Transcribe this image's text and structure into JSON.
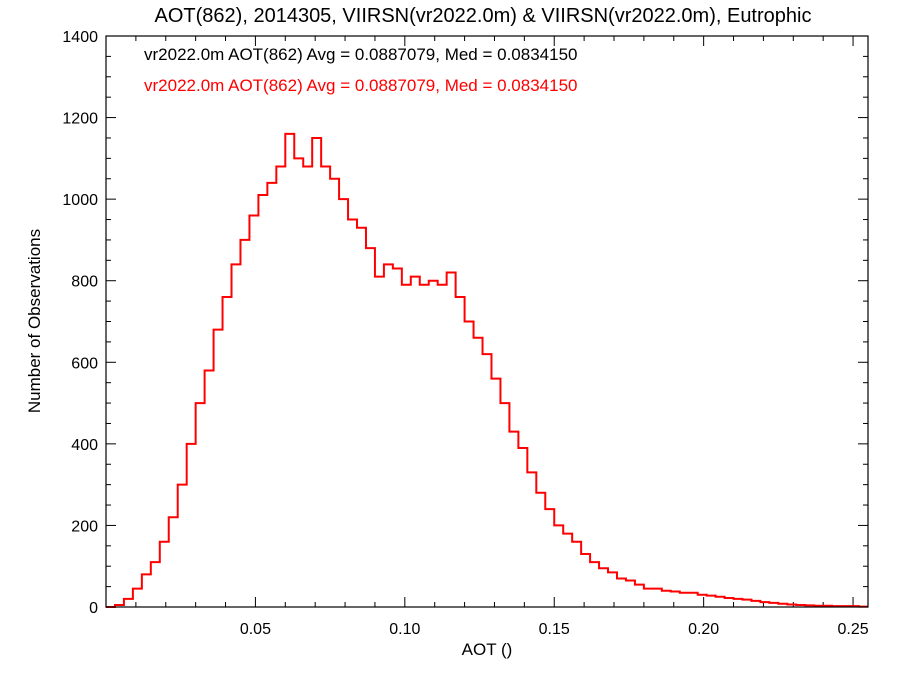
{
  "chart_data": {
    "type": "step",
    "title": "AOT(862), 2014305, VIIRSN(vr2022.0m) & VIIRSN(vr2022.0m), Eutrophic",
    "xlabel": "AOT ()",
    "ylabel": "Number of Observations",
    "xlim": [
      0.0,
      0.255
    ],
    "ylim": [
      0,
      1400
    ],
    "xticks": [
      0.05,
      0.1,
      0.15,
      0.2,
      0.25
    ],
    "xtick_labels": [
      "0.05",
      "0.10",
      "0.15",
      "0.20",
      "0.25"
    ],
    "yticks": [
      0,
      200,
      400,
      600,
      800,
      1000,
      1200,
      1400
    ],
    "ytick_labels": [
      "0",
      "200",
      "400",
      "600",
      "800",
      "1000",
      "1200",
      "1400"
    ],
    "grid": false,
    "legend_placement": "top-left",
    "annotations": [
      {
        "text": "vr2022.0m AOT(862) Avg = 0.0887079, Med = 0.0834150",
        "color": "#000000"
      },
      {
        "text": "vr2022.0m AOT(862) Avg = 0.0887079, Med = 0.0834150",
        "color": "#ff0000"
      }
    ],
    "series": [
      {
        "color": "#000000",
        "x": [
          0.0,
          0.003,
          0.006,
          0.009,
          0.012,
          0.015,
          0.018,
          0.021,
          0.024,
          0.027,
          0.03,
          0.033,
          0.036,
          0.039,
          0.042,
          0.045,
          0.048,
          0.051,
          0.054,
          0.057,
          0.06,
          0.063,
          0.066,
          0.069,
          0.072,
          0.075,
          0.078,
          0.081,
          0.084,
          0.087,
          0.09,
          0.093,
          0.096,
          0.099,
          0.102,
          0.105,
          0.108,
          0.111,
          0.114,
          0.117,
          0.12,
          0.123,
          0.126,
          0.129,
          0.132,
          0.135,
          0.138,
          0.141,
          0.144,
          0.147,
          0.15,
          0.153,
          0.156,
          0.159,
          0.162,
          0.165,
          0.168,
          0.171,
          0.174,
          0.177,
          0.18,
          0.183,
          0.186,
          0.189,
          0.192,
          0.195,
          0.198,
          0.201,
          0.204,
          0.207,
          0.21,
          0.213,
          0.216,
          0.219,
          0.222,
          0.225,
          0.228,
          0.231,
          0.234,
          0.237,
          0.24,
          0.243,
          0.246,
          0.249,
          0.252
        ],
        "values": [
          0,
          5,
          20,
          45,
          80,
          110,
          160,
          220,
          300,
          400,
          500,
          580,
          680,
          760,
          840,
          900,
          960,
          1010,
          1040,
          1080,
          1160,
          1100,
          1080,
          1150,
          1080,
          1050,
          1000,
          950,
          930,
          880,
          810,
          840,
          830,
          790,
          810,
          790,
          800,
          790,
          820,
          760,
          700,
          660,
          620,
          560,
          500,
          430,
          390,
          330,
          280,
          240,
          200,
          180,
          160,
          130,
          110,
          95,
          85,
          70,
          65,
          55,
          45,
          45,
          40,
          38,
          35,
          35,
          30,
          28,
          25,
          22,
          20,
          18,
          15,
          12,
          10,
          8,
          6,
          5,
          4,
          3,
          3,
          2,
          2,
          2,
          1
        ]
      },
      {
        "color": "#ff0000",
        "x": [
          0.0,
          0.003,
          0.006,
          0.009,
          0.012,
          0.015,
          0.018,
          0.021,
          0.024,
          0.027,
          0.03,
          0.033,
          0.036,
          0.039,
          0.042,
          0.045,
          0.048,
          0.051,
          0.054,
          0.057,
          0.06,
          0.063,
          0.066,
          0.069,
          0.072,
          0.075,
          0.078,
          0.081,
          0.084,
          0.087,
          0.09,
          0.093,
          0.096,
          0.099,
          0.102,
          0.105,
          0.108,
          0.111,
          0.114,
          0.117,
          0.12,
          0.123,
          0.126,
          0.129,
          0.132,
          0.135,
          0.138,
          0.141,
          0.144,
          0.147,
          0.15,
          0.153,
          0.156,
          0.159,
          0.162,
          0.165,
          0.168,
          0.171,
          0.174,
          0.177,
          0.18,
          0.183,
          0.186,
          0.189,
          0.192,
          0.195,
          0.198,
          0.201,
          0.204,
          0.207,
          0.21,
          0.213,
          0.216,
          0.219,
          0.222,
          0.225,
          0.228,
          0.231,
          0.234,
          0.237,
          0.24,
          0.243,
          0.246,
          0.249,
          0.252
        ],
        "values": [
          0,
          5,
          20,
          45,
          80,
          110,
          160,
          220,
          300,
          400,
          500,
          580,
          680,
          760,
          840,
          900,
          960,
          1010,
          1040,
          1080,
          1160,
          1100,
          1080,
          1150,
          1080,
          1050,
          1000,
          950,
          930,
          880,
          810,
          840,
          830,
          790,
          810,
          790,
          800,
          790,
          820,
          760,
          700,
          660,
          620,
          560,
          500,
          430,
          390,
          330,
          280,
          240,
          200,
          180,
          160,
          130,
          110,
          95,
          85,
          70,
          65,
          55,
          45,
          45,
          40,
          38,
          35,
          35,
          30,
          28,
          25,
          22,
          20,
          18,
          15,
          12,
          10,
          8,
          6,
          5,
          4,
          3,
          3,
          2,
          2,
          2,
          1
        ]
      }
    ]
  }
}
